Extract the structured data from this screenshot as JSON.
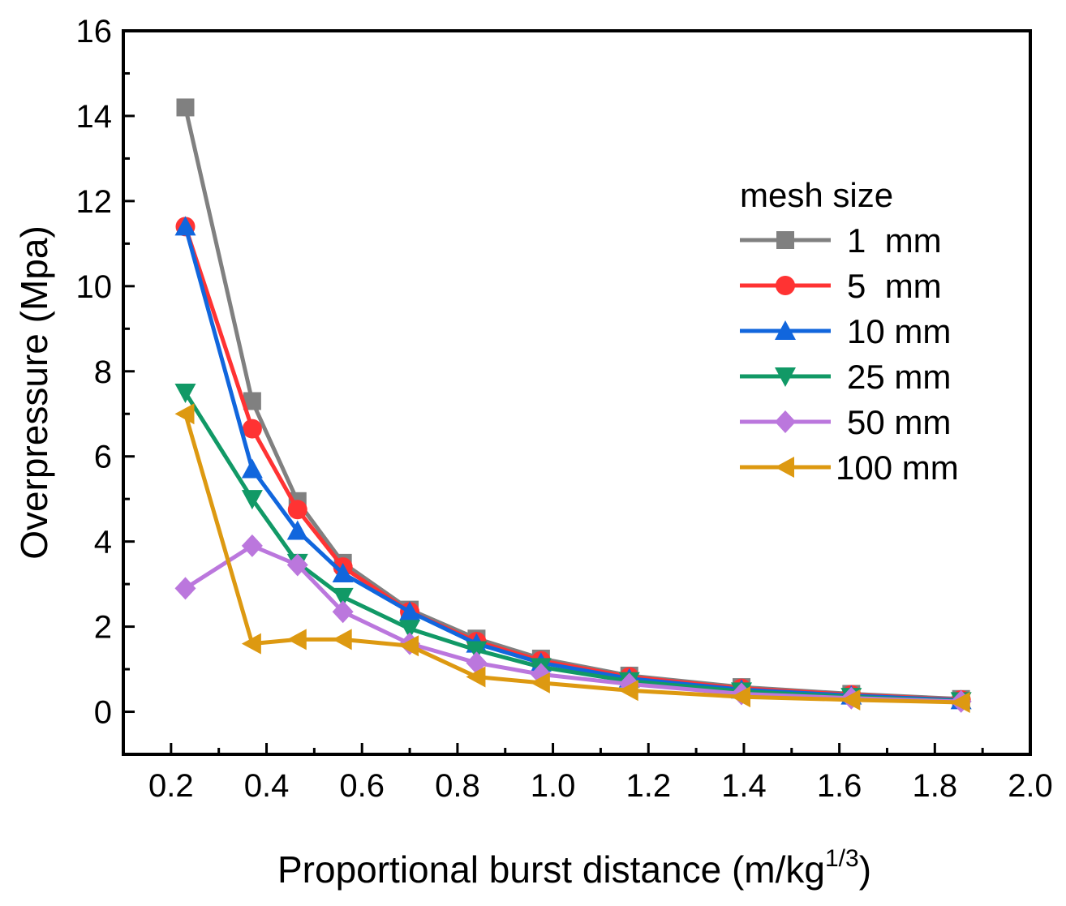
{
  "chart_data": {
    "type": "line",
    "title": "",
    "xlabel": "Proportional burst distance (m/kg",
    "xlabel_sup": "1/3",
    "xlabel_close": ")",
    "ylabel": "Overpressure (Mpa)",
    "xlim": [
      0.1,
      2.0
    ],
    "ylim": [
      -1,
      16
    ],
    "xticks": [
      "0.2",
      "0.4",
      "0.6",
      "0.8",
      "1.0",
      "1.2",
      "1.4",
      "1.6",
      "1.8",
      "2.0"
    ],
    "yticks": [
      "0",
      "2",
      "4",
      "6",
      "8",
      "10",
      "12",
      "14",
      "16"
    ],
    "x": [
      0.23,
      0.37,
      0.465,
      0.56,
      0.7,
      0.84,
      0.975,
      1.16,
      1.395,
      1.625,
      1.855
    ],
    "legend_title": "mesh size",
    "series": [
      {
        "name": "1  mm",
        "color": "#808080",
        "marker": "square",
        "values": [
          14.2,
          7.3,
          4.95,
          3.5,
          2.4,
          1.72,
          1.25,
          0.85,
          0.58,
          0.42,
          0.3
        ]
      },
      {
        "name": "5  mm",
        "color": "#ff3333",
        "marker": "circle",
        "values": [
          11.4,
          6.65,
          4.75,
          3.4,
          2.35,
          1.65,
          1.2,
          0.82,
          0.55,
          0.4,
          0.28
        ]
      },
      {
        "name": "10 mm",
        "color": "#1166dd",
        "marker": "triangle-up",
        "values": [
          11.4,
          5.7,
          4.25,
          3.25,
          2.35,
          1.6,
          1.15,
          0.78,
          0.52,
          0.38,
          0.27
        ]
      },
      {
        "name": "25 mm",
        "color": "#119966",
        "marker": "triangle-down",
        "values": [
          7.5,
          5.0,
          3.5,
          2.7,
          1.95,
          1.45,
          1.05,
          0.72,
          0.48,
          0.35,
          0.25
        ]
      },
      {
        "name": "50 mm",
        "color": "#bb77dd",
        "marker": "diamond",
        "values": [
          2.9,
          3.9,
          3.45,
          2.35,
          1.6,
          1.15,
          0.88,
          0.65,
          0.42,
          0.32,
          0.24
        ]
      },
      {
        "name": "100 mm",
        "color": "#dd9911",
        "marker": "triangle-left",
        "values": [
          7.0,
          1.6,
          1.7,
          1.7,
          1.55,
          0.82,
          0.68,
          0.5,
          0.35,
          0.28,
          0.22
        ]
      }
    ]
  }
}
